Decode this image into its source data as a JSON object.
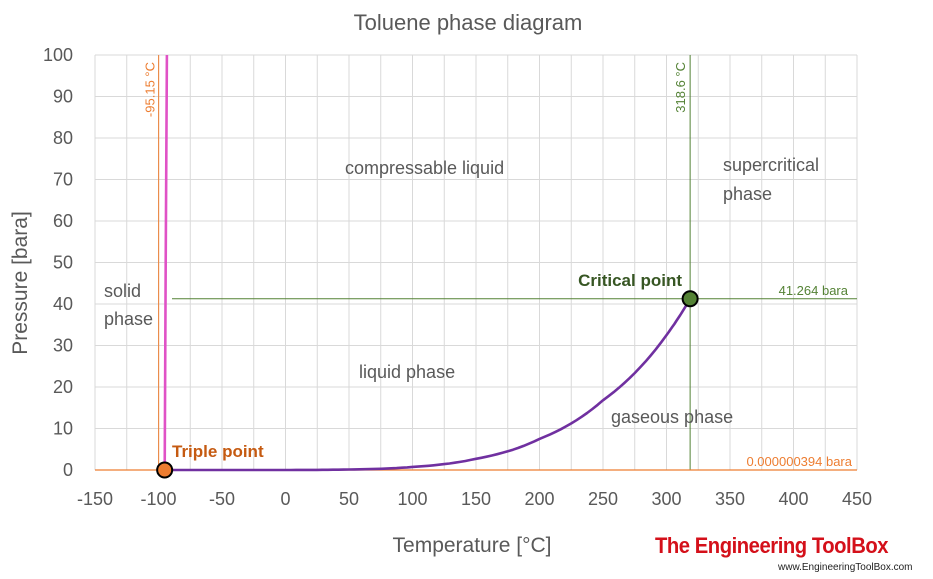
{
  "chart_data": {
    "type": "line",
    "title": "Toluene phase diagram",
    "xlabel": "Temperature [°C]",
    "ylabel": "Pressure [bara]",
    "xlim": [
      -150,
      450
    ],
    "ylim": [
      0,
      100
    ],
    "x_ticks": [
      "-150",
      "-100",
      "-50",
      "0",
      "50",
      "100",
      "150",
      "200",
      "250",
      "300",
      "350",
      "400",
      "450"
    ],
    "y_ticks": [
      "0",
      "10",
      "20",
      "30",
      "40",
      "50",
      "60",
      "70",
      "80",
      "90",
      "100"
    ],
    "grid": true,
    "series": [
      {
        "color": "#e052c6",
        "x": [
          -95.15,
          -94.3,
          -93.4
        ],
        "y": [
          0,
          50,
          100
        ]
      },
      {
        "color": "#7030a0",
        "x": [
          -95.15,
          -50,
          0,
          50,
          100,
          150,
          200,
          250,
          300,
          318.6
        ],
        "y": [
          0,
          0.001,
          0.009,
          0.12,
          0.74,
          2.7,
          7.5,
          16.8,
          32.5,
          41.264
        ]
      }
    ],
    "reference_lines": {
      "triple_temp": {
        "value": -95.15,
        "label": "-95.15 °C",
        "color": "#ed7d31"
      },
      "critical_temp": {
        "value": 318.6,
        "label": "318.6 °C",
        "color": "#548235"
      },
      "critical_pressure": {
        "value": 41.264,
        "label": "41.264 bara",
        "color": "#548235"
      },
      "triple_pressure": {
        "value": 0,
        "label": "0.000000394 bara",
        "color": "#ed7d31"
      }
    },
    "points": {
      "triple": {
        "x": -95.15,
        "y": 0,
        "label": "Triple point",
        "fill": "#ed7d31",
        "label_color": "#c55a11"
      },
      "critical": {
        "x": 318.6,
        "y": 41.264,
        "label": "Critical point",
        "fill": "#548235",
        "label_color": "#375623"
      }
    },
    "regions": {
      "compressable_liquid": "compressable liquid",
      "supercritical_line1": "supercritical",
      "supercritical_line2": "phase",
      "solid_line1": "solid",
      "solid_line2": "phase",
      "liquid": "liquid phase",
      "gaseous": "gaseous phase"
    }
  },
  "branding": {
    "name": "The Engineering ToolBox",
    "url": "www.EngineeringToolBox.com"
  }
}
